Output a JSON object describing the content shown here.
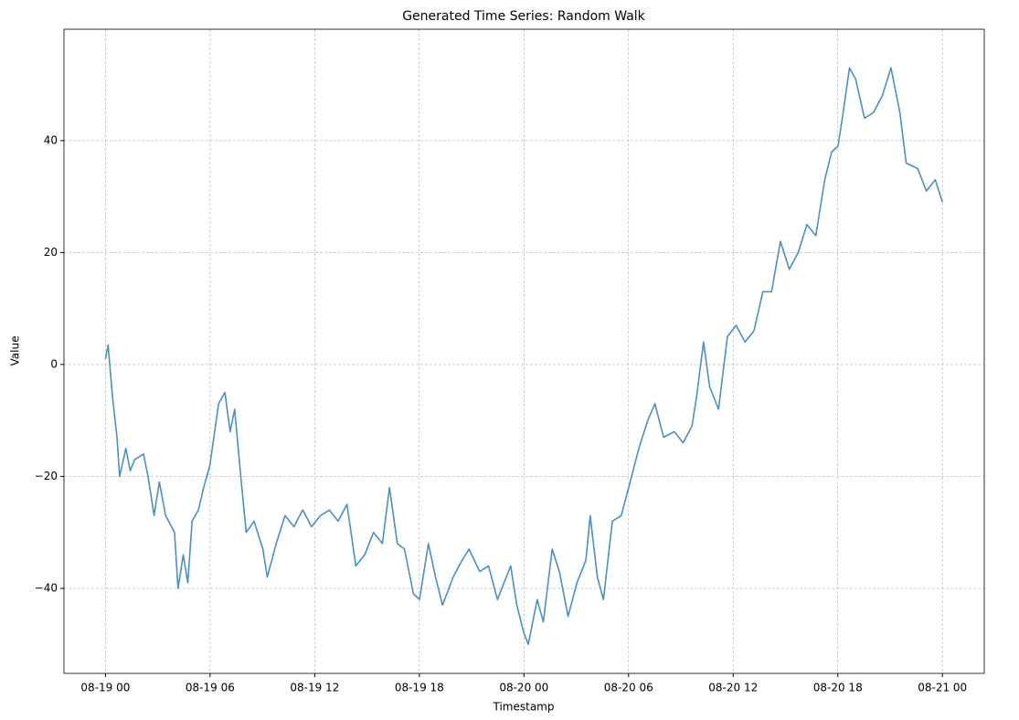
{
  "chart_data": {
    "type": "line",
    "title": "Generated Time Series: Random Walk",
    "x_label": "Timestamp",
    "y_label": "Value",
    "x": [
      0,
      0.15,
      0.41,
      0.66,
      0.81,
      1.17,
      1.42,
      1.67,
      2.18,
      2.44,
      2.79,
      3.09,
      3.45,
      3.96,
      4.16,
      4.46,
      4.72,
      4.97,
      5.33,
      5.63,
      5.99,
      6.49,
      6.85,
      7.15,
      7.41,
      7.76,
      8.07,
      8.52,
      9.03,
      9.28,
      9.79,
      10.3,
      10.81,
      11.31,
      11.82,
      12.33,
      12.84,
      13.34,
      13.85,
      14.36,
      14.87,
      15.37,
      15.88,
      16.29,
      16.74,
      17.15,
      17.66,
      18.01,
      18.52,
      18.93,
      19.33,
      19.94,
      20.45,
      20.85,
      21.46,
      21.97,
      22.48,
      23.24,
      23.59,
      24.0,
      24.25,
      24.76,
      25.11,
      25.62,
      26.03,
      26.53,
      27.04,
      27.55,
      27.8,
      28.21,
      28.56,
      29.07,
      29.58,
      30.09,
      30.59,
      31.1,
      31.51,
      32.01,
      32.62,
      33.13,
      33.64,
      33.89,
      34.3,
      34.65,
      35.16,
      35.67,
      36.17,
      36.68,
      37.19,
      37.7,
      38.2,
      38.71,
      39.22,
      39.73,
      40.23,
      40.74,
      41.25,
      41.65,
      42.01,
      42.26,
      42.67,
      43.02,
      43.53,
      44.04,
      44.55,
      45.05,
      45.56,
      45.92,
      46.58,
      47.08,
      47.59,
      48.0
    ],
    "series": [
      {
        "color": "#4a90c2",
        "values": [
          1,
          3.5,
          -6,
          -13,
          -20,
          -15,
          -19,
          -17,
          -16,
          -20,
          -27,
          -21,
          -27,
          -30,
          -40,
          -34,
          -39,
          -28,
          -26,
          -22,
          -18,
          -7,
          -5,
          -12,
          -8,
          -20,
          -30,
          -28,
          -33,
          -38,
          -32,
          -27,
          -29,
          -26,
          -29,
          -27,
          -26,
          -28,
          -25,
          -36,
          -34,
          -30,
          -32,
          -22,
          -32,
          -33,
          -41,
          -42,
          -32,
          -38,
          -43,
          -38,
          -35,
          -33,
          -37,
          -36,
          -42,
          -36,
          -43,
          -48,
          -50,
          -42,
          -46,
          -33,
          -37,
          -45,
          -39,
          -35,
          -27,
          -38,
          -42,
          -28,
          -27,
          -21,
          -15,
          -10,
          -7,
          -13,
          -12,
          -14,
          -11,
          -6,
          4,
          -4,
          -8,
          5,
          7,
          4,
          6,
          13,
          13,
          22,
          17,
          20,
          25,
          23,
          33,
          38,
          39,
          44,
          53,
          51,
          44,
          45,
          48,
          53,
          45,
          36,
          35,
          31,
          33,
          29
        ]
      }
    ],
    "xlim": [
      -2.38,
      50.4
    ],
    "xticks": [
      {
        "value": 0,
        "label": "08-19 00"
      },
      {
        "value": 6,
        "label": "08-19 06"
      },
      {
        "value": 12,
        "label": "08-19 12"
      },
      {
        "value": 18,
        "label": "08-19 18"
      },
      {
        "value": 24,
        "label": "08-20 00"
      },
      {
        "value": 30,
        "label": "08-20 06"
      },
      {
        "value": 36,
        "label": "08-20 12"
      },
      {
        "value": 42,
        "label": "08-20 18"
      },
      {
        "value": 48,
        "label": "08-21 00"
      }
    ],
    "ylim": [
      -55.2,
      59.9
    ],
    "yticks": [
      {
        "value": -40,
        "label": "−40"
      },
      {
        "value": -20,
        "label": "−20"
      },
      0,
      20,
      40
    ],
    "grid": true
  }
}
